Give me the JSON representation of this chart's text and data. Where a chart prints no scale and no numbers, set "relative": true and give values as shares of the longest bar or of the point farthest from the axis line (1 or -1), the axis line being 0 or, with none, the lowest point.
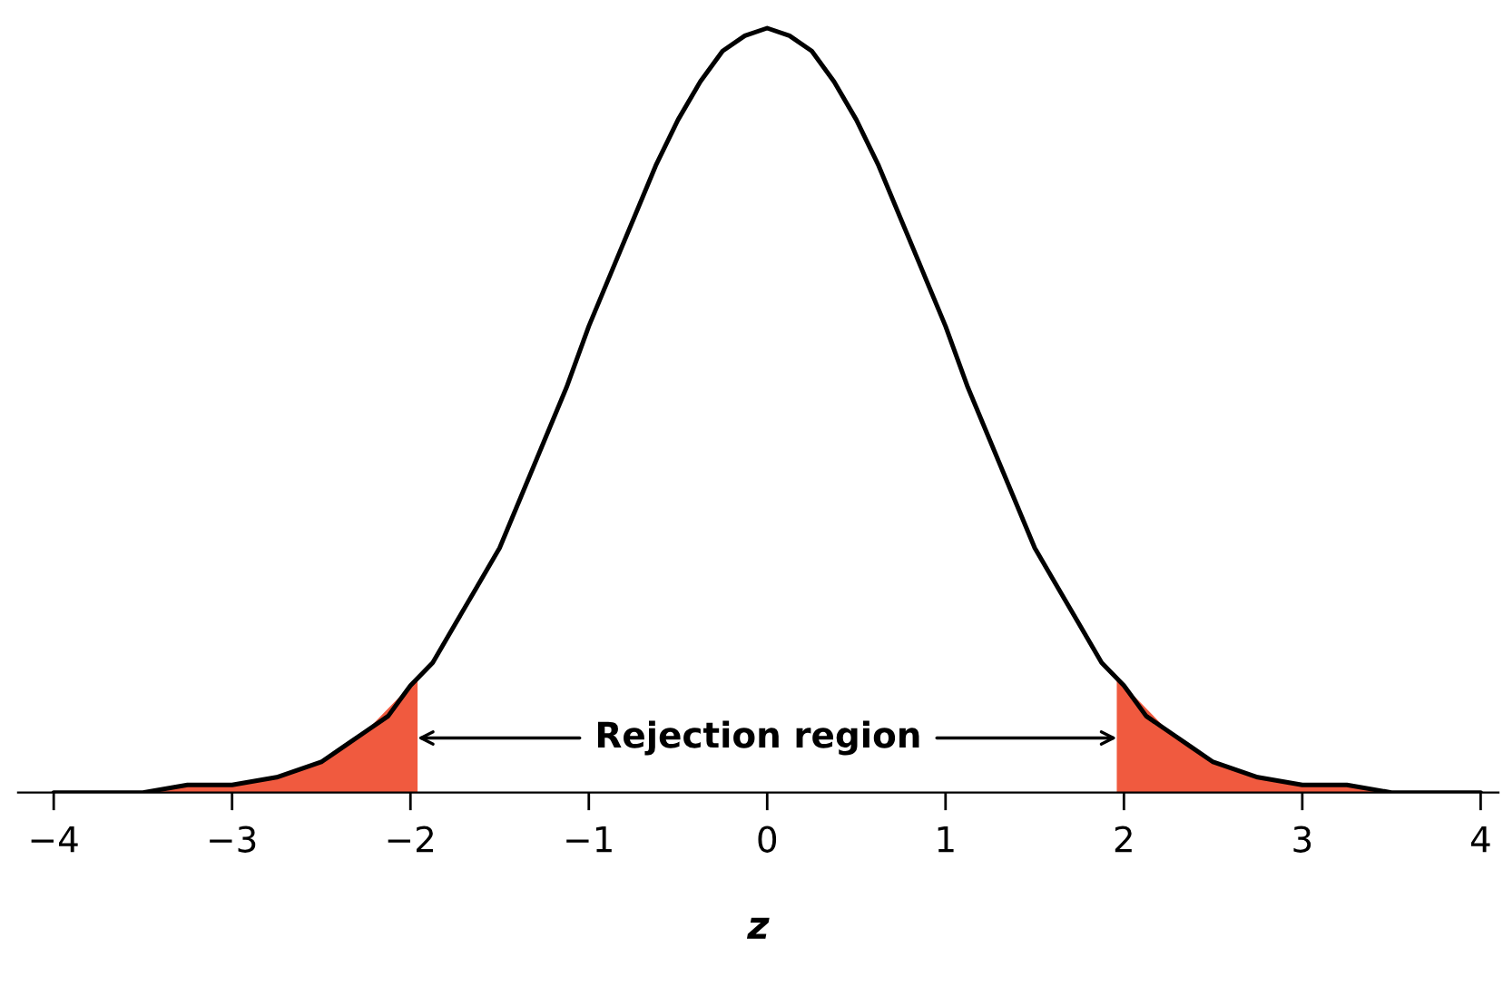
{
  "chart_data": {
    "type": "line",
    "relative": true,
    "xlabel": "z",
    "xlim": [
      -4.2,
      4.1
    ],
    "xticks": [
      {
        "value": -4,
        "label": "−4"
      },
      {
        "value": -3,
        "label": "−3"
      },
      {
        "value": -2,
        "label": "−2"
      },
      {
        "value": -1,
        "label": "−1"
      },
      0,
      1,
      2,
      3,
      4
    ],
    "series": [
      {
        "type": "area",
        "color": "#f05a3f",
        "x": [
          -4,
          -3.75,
          -3.5,
          -3.25,
          -3,
          -2.75,
          -2.5,
          -2.25,
          -2,
          -1.96
        ],
        "values": [
          0,
          0,
          0,
          0.01,
          0.01,
          0.02,
          0.04,
          0.08,
          0.14,
          0.15
        ]
      },
      {
        "type": "area",
        "color": "#f05a3f",
        "x": [
          1.96,
          2,
          2.25,
          2.5,
          2.75,
          3,
          3.25,
          3.5,
          3.75,
          4
        ],
        "values": [
          0.15,
          0.14,
          0.08,
          0.04,
          0.02,
          0.01,
          0.01,
          0,
          0,
          0
        ]
      },
      {
        "color": "#000000",
        "x": [
          -4,
          -3.75,
          -3.5,
          -3.25,
          -3,
          -2.75,
          -2.5,
          -2.375,
          -2.25,
          -2.125,
          -2,
          -1.875,
          -1.75,
          -1.625,
          -1.5,
          -1.375,
          -1.25,
          -1.125,
          -1,
          -0.875,
          -0.75,
          -0.625,
          -0.5,
          -0.375,
          -0.25,
          -0.125,
          0,
          0.125,
          0.25,
          0.375,
          0.5,
          0.625,
          0.75,
          0.875,
          1,
          1.125,
          1.25,
          1.375,
          1.5,
          1.625,
          1.75,
          1.875,
          2,
          2.125,
          2.25,
          2.375,
          2.5,
          2.75,
          3,
          3.25,
          3.5,
          3.75,
          4
        ],
        "values": [
          0,
          0,
          0,
          0.01,
          0.01,
          0.02,
          0.04,
          0.06,
          0.08,
          0.1,
          0.14,
          0.17,
          0.22,
          0.27,
          0.32,
          0.39,
          0.46,
          0.53,
          0.61,
          0.68,
          0.75,
          0.82,
          0.88,
          0.93,
          0.97,
          0.99,
          1,
          0.99,
          0.97,
          0.93,
          0.88,
          0.82,
          0.75,
          0.68,
          0.61,
          0.53,
          0.46,
          0.39,
          0.32,
          0.27,
          0.22,
          0.17,
          0.14,
          0.1,
          0.08,
          0.06,
          0.04,
          0.02,
          0.01,
          0.01,
          0,
          0,
          0
        ]
      }
    ],
    "annotations": [
      "Rejection region"
    ],
    "grid": false
  }
}
